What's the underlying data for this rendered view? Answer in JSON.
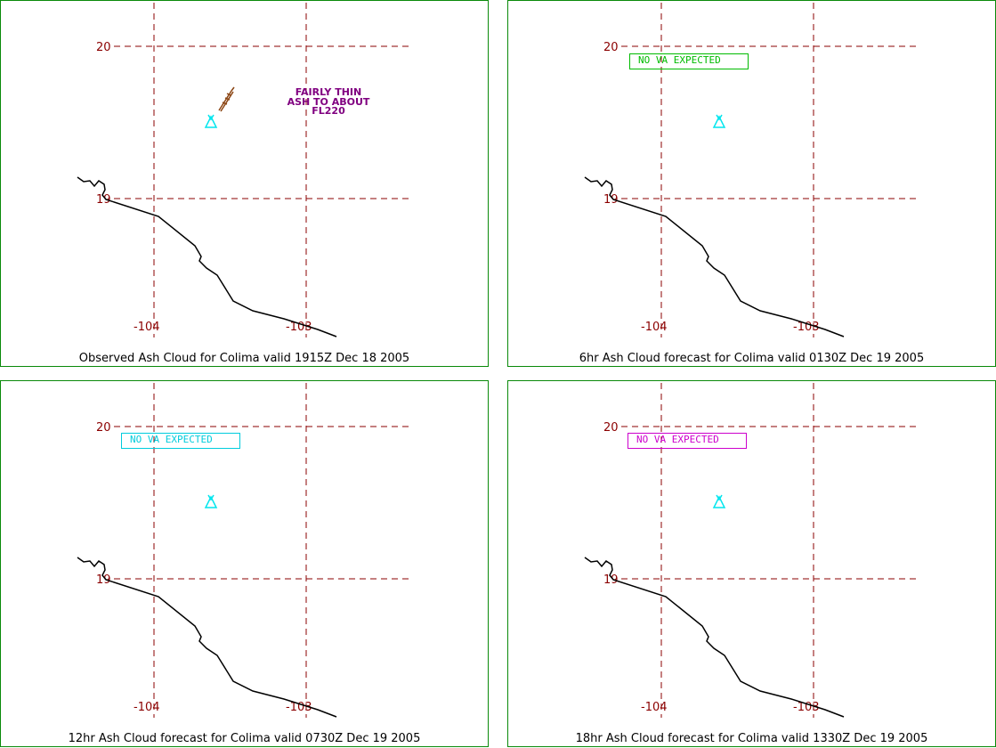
{
  "colors": {
    "grid": "#8b0000",
    "coast": "#000000",
    "volcano": "#00e5ee",
    "frame": "#0a8a0a",
    "plume": "#8b4513",
    "annotation": "#800080"
  },
  "grid_labels": {
    "lat_top": "20",
    "lat_bottom": "19",
    "lon_left": "-104",
    "lon_right": "-103"
  },
  "panels": [
    {
      "caption": "Observed Ash Cloud for Colima valid 1915Z Dec 18 2005",
      "annotation": [
        "FAIRLY THIN",
        "ASH TO ABOUT",
        "FL220"
      ]
    },
    {
      "caption": "6hr Ash Cloud forecast for Colima valid 0130Z Dec 19 2005",
      "va_text": "NO VA EXPECTED",
      "va_color": "#00bb00"
    },
    {
      "caption": "12hr Ash Cloud forecast for Colima valid 0730Z Dec 19 2005",
      "va_text": "NO VA EXPECTED",
      "va_color": "#00ccdd"
    },
    {
      "caption": "18hr Ash Cloud forecast for Colima valid 1330Z Dec 19 2005",
      "va_text": "NO VA EXPECTED",
      "va_color": "#cc00cc"
    }
  ]
}
